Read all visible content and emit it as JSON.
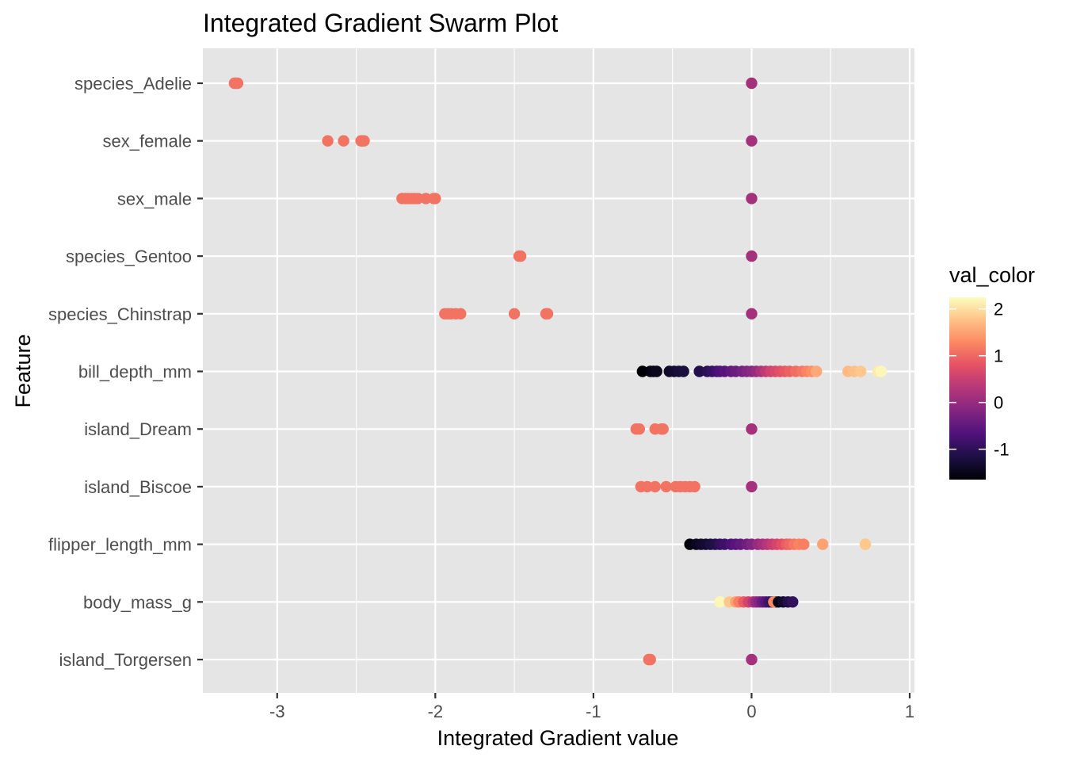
{
  "chart_data": {
    "type": "scatter",
    "title": "Integrated Gradient Swarm Plot",
    "xlabel": "Integrated Gradient value",
    "ylabel": "Feature",
    "xlim": [
      -3.47,
      1.03
    ],
    "x_ticks": [
      -3,
      -2,
      -1,
      0,
      1
    ],
    "x_tick_labels": [
      "-3",
      "-2",
      "-1",
      "0",
      "1"
    ],
    "grid": true,
    "panel_background": "#e5e5e5",
    "grid_color": "#ffffff",
    "categories": [
      "species_Adelie",
      "sex_female",
      "sex_male",
      "species_Gentoo",
      "species_Chinstrap",
      "bill_depth_mm",
      "island_Dream",
      "island_Biscoe",
      "flipper_length_mm",
      "body_mass_g",
      "island_Torgersen"
    ],
    "legend": {
      "title": "val_color",
      "position": "right",
      "min": -1.65,
      "max": 2.25,
      "ticks": [
        -1,
        0,
        1,
        2
      ],
      "tick_labels": [
        "-1",
        "0",
        "1",
        "2"
      ],
      "colormap": [
        "#000004",
        "#1c1044",
        "#4f127b",
        "#812581",
        "#b5367a",
        "#e55064",
        "#fb8761",
        "#fec287",
        "#fcfdbf"
      ]
    },
    "series": [
      {
        "category": "species_Adelie",
        "points": [
          [
            -3.27,
            1.1
          ],
          [
            -3.26,
            1.1
          ],
          [
            -3.25,
            1.1
          ],
          [
            0.0,
            0.15
          ]
        ]
      },
      {
        "category": "sex_female",
        "points": [
          [
            -2.68,
            1.1
          ],
          [
            -2.58,
            1.1
          ],
          [
            -2.47,
            1.1
          ],
          [
            -2.46,
            1.1
          ],
          [
            -2.45,
            1.1
          ],
          [
            0.0,
            0.15
          ]
        ]
      },
      {
        "category": "sex_male",
        "points": [
          [
            -2.21,
            1.1
          ],
          [
            -2.19,
            1.1
          ],
          [
            -2.17,
            1.1
          ],
          [
            -2.15,
            1.1
          ],
          [
            -2.13,
            1.1
          ],
          [
            -2.11,
            1.1
          ],
          [
            -2.06,
            1.1
          ],
          [
            -2.01,
            1.1
          ],
          [
            -2.0,
            1.1
          ],
          [
            0.0,
            0.15
          ]
        ]
      },
      {
        "category": "species_Gentoo",
        "points": [
          [
            -1.47,
            1.1
          ],
          [
            -1.46,
            1.1
          ],
          [
            0.0,
            0.15
          ]
        ]
      },
      {
        "category": "species_Chinstrap",
        "points": [
          [
            -1.94,
            1.1
          ],
          [
            -1.92,
            1.1
          ],
          [
            -1.9,
            1.1
          ],
          [
            -1.87,
            1.1
          ],
          [
            -1.84,
            1.1
          ],
          [
            -1.5,
            1.1
          ],
          [
            -1.3,
            1.1
          ],
          [
            -1.29,
            1.1
          ],
          [
            0.0,
            0.15
          ]
        ]
      },
      {
        "category": "bill_depth_mm",
        "points": [
          [
            -0.69,
            -1.65
          ],
          [
            -0.64,
            -1.55
          ],
          [
            -0.62,
            -1.5
          ],
          [
            -0.6,
            -1.45
          ],
          [
            -0.52,
            -1.35
          ],
          [
            -0.49,
            -1.3
          ],
          [
            -0.46,
            -1.25
          ],
          [
            -0.43,
            -1.2
          ],
          [
            -0.33,
            -1.1
          ],
          [
            -0.28,
            -1.0
          ],
          [
            -0.25,
            -0.9
          ],
          [
            -0.22,
            -0.8
          ],
          [
            -0.2,
            -0.7
          ],
          [
            -0.17,
            -0.6
          ],
          [
            -0.13,
            -0.5
          ],
          [
            -0.1,
            -0.4
          ],
          [
            -0.06,
            -0.3
          ],
          [
            -0.03,
            -0.2
          ],
          [
            0.0,
            -0.1
          ],
          [
            0.03,
            0.0
          ],
          [
            0.06,
            0.2
          ],
          [
            0.09,
            0.4
          ],
          [
            0.12,
            0.55
          ],
          [
            0.15,
            0.65
          ],
          [
            0.18,
            0.75
          ],
          [
            0.21,
            0.85
          ],
          [
            0.24,
            0.95
          ],
          [
            0.28,
            1.05
          ],
          [
            0.32,
            1.15
          ],
          [
            0.35,
            1.25
          ],
          [
            0.38,
            1.35
          ],
          [
            0.41,
            1.55
          ],
          [
            0.61,
            1.7
          ],
          [
            0.65,
            1.75
          ],
          [
            0.69,
            1.8
          ],
          [
            0.8,
            2.1
          ],
          [
            0.82,
            2.2
          ]
        ]
      },
      {
        "category": "island_Dream",
        "points": [
          [
            -0.73,
            1.1
          ],
          [
            -0.71,
            1.1
          ],
          [
            -0.61,
            1.1
          ],
          [
            -0.57,
            1.1
          ],
          [
            -0.56,
            1.1
          ],
          [
            0.0,
            0.15
          ]
        ]
      },
      {
        "category": "island_Biscoe",
        "points": [
          [
            -0.7,
            1.1
          ],
          [
            -0.66,
            1.1
          ],
          [
            -0.61,
            1.1
          ],
          [
            -0.54,
            1.1
          ],
          [
            -0.48,
            1.1
          ],
          [
            -0.45,
            1.1
          ],
          [
            -0.42,
            1.1
          ],
          [
            -0.39,
            1.1
          ],
          [
            -0.36,
            1.1
          ],
          [
            0.0,
            0.15
          ]
        ]
      },
      {
        "category": "flipper_length_mm",
        "points": [
          [
            -0.39,
            -1.6
          ],
          [
            -0.35,
            -1.45
          ],
          [
            -0.32,
            -1.35
          ],
          [
            -0.29,
            -1.3
          ],
          [
            -0.26,
            -1.2
          ],
          [
            -0.23,
            -1.1
          ],
          [
            -0.2,
            -0.95
          ],
          [
            -0.17,
            -0.85
          ],
          [
            -0.13,
            -0.7
          ],
          [
            -0.1,
            -0.6
          ],
          [
            -0.07,
            -0.5
          ],
          [
            -0.03,
            -0.35
          ],
          [
            0.0,
            -0.2
          ],
          [
            0.04,
            0.0
          ],
          [
            0.07,
            0.15
          ],
          [
            0.1,
            0.3
          ],
          [
            0.13,
            0.45
          ],
          [
            0.16,
            0.6
          ],
          [
            0.19,
            0.75
          ],
          [
            0.22,
            0.9
          ],
          [
            0.24,
            1.0
          ],
          [
            0.27,
            1.15
          ],
          [
            0.3,
            1.25
          ],
          [
            0.33,
            1.2
          ],
          [
            0.45,
            1.5
          ],
          [
            0.72,
            1.8
          ]
        ]
      },
      {
        "category": "body_mass_g",
        "points": [
          [
            -0.2,
            2.2
          ],
          [
            -0.14,
            1.8
          ],
          [
            -0.1,
            1.5
          ],
          [
            -0.08,
            1.2
          ],
          [
            -0.05,
            0.9
          ],
          [
            -0.02,
            0.6
          ],
          [
            0.01,
            0.3
          ],
          [
            0.03,
            0.0
          ],
          [
            0.05,
            -0.2
          ],
          [
            0.07,
            -0.4
          ],
          [
            0.09,
            -0.6
          ],
          [
            0.11,
            -0.8
          ],
          [
            0.13,
            -1.0
          ],
          [
            0.15,
            -1.2
          ],
          [
            0.14,
            1.3
          ],
          [
            0.17,
            -1.5
          ],
          [
            0.2,
            -1.3
          ],
          [
            0.23,
            -1.1
          ],
          [
            0.26,
            -0.95
          ]
        ]
      },
      {
        "category": "island_Torgersen",
        "points": [
          [
            -0.65,
            1.1
          ],
          [
            -0.64,
            1.1
          ],
          [
            0.0,
            0.15
          ]
        ]
      }
    ]
  }
}
